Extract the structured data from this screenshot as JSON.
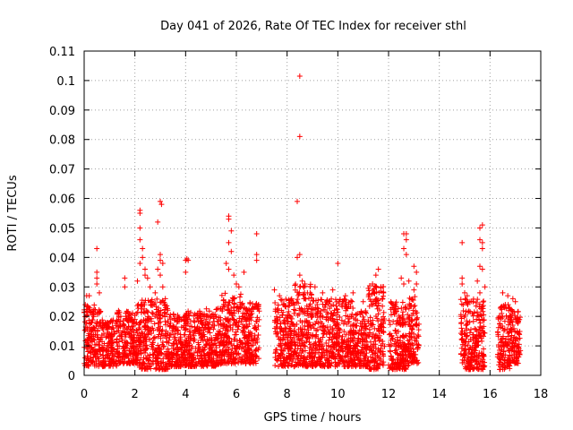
{
  "chart_data": {
    "type": "scatter",
    "title": "Day 041 of 2026, Rate Of TEC Index for receiver sthl",
    "xlabel": "GPS time / hours",
    "ylabel": "ROTI / TECUs",
    "xlim": [
      0,
      18
    ],
    "ylim": [
      0,
      0.11
    ],
    "xticks": [
      "0",
      "2",
      "4",
      "6",
      "8",
      "10",
      "12",
      "14",
      "16",
      "18"
    ],
    "yticks": [
      "0",
      "0.01",
      "0.02",
      "0.03",
      "0.04",
      "0.05",
      "0.06",
      "0.07",
      "0.08",
      "0.09",
      "0.1",
      "0.11"
    ],
    "grid": true,
    "marker": "+",
    "series_color": "#ff0000",
    "series": [
      {
        "name": "ROTI",
        "points": [
          [
            0.1,
            0.027
          ],
          [
            0.2,
            0.027
          ],
          [
            0.5,
            0.043
          ],
          [
            0.5,
            0.035
          ],
          [
            0.5,
            0.033
          ],
          [
            0.5,
            0.031
          ],
          [
            0.6,
            0.028
          ],
          [
            1.6,
            0.03
          ],
          [
            1.6,
            0.033
          ],
          [
            2.2,
            0.056
          ],
          [
            2.2,
            0.055
          ],
          [
            2.2,
            0.05
          ],
          [
            2.2,
            0.046
          ],
          [
            2.3,
            0.043
          ],
          [
            2.3,
            0.04
          ],
          [
            2.2,
            0.038
          ],
          [
            2.4,
            0.036
          ],
          [
            2.4,
            0.034
          ],
          [
            2.5,
            0.033
          ],
          [
            2.1,
            0.032
          ],
          [
            2.6,
            0.03
          ],
          [
            3.0,
            0.059
          ],
          [
            3.05,
            0.058
          ],
          [
            2.9,
            0.052
          ],
          [
            3.0,
            0.041
          ],
          [
            3.0,
            0.039
          ],
          [
            3.1,
            0.038
          ],
          [
            2.9,
            0.036
          ],
          [
            3.0,
            0.034
          ],
          [
            3.1,
            0.03
          ],
          [
            2.8,
            0.028
          ],
          [
            3.2,
            0.026
          ],
          [
            4.0,
            0.039
          ],
          [
            4.05,
            0.0395
          ],
          [
            4.1,
            0.039
          ],
          [
            4.0,
            0.035
          ],
          [
            5.7,
            0.054
          ],
          [
            5.7,
            0.053
          ],
          [
            5.8,
            0.049
          ],
          [
            5.7,
            0.045
          ],
          [
            5.8,
            0.042
          ],
          [
            5.6,
            0.038
          ],
          [
            5.7,
            0.036
          ],
          [
            5.9,
            0.034
          ],
          [
            6.0,
            0.031
          ],
          [
            6.3,
            0.035
          ],
          [
            6.1,
            0.03
          ],
          [
            6.8,
            0.048
          ],
          [
            6.8,
            0.041
          ],
          [
            6.8,
            0.039
          ],
          [
            7.5,
            0.029
          ],
          [
            7.7,
            0.027
          ],
          [
            8.4,
            0.059
          ],
          [
            8.5,
            0.1015
          ],
          [
            8.5,
            0.081
          ],
          [
            8.5,
            0.041
          ],
          [
            8.4,
            0.04
          ],
          [
            8.5,
            0.034
          ],
          [
            8.6,
            0.032
          ],
          [
            8.7,
            0.031
          ],
          [
            8.5,
            0.03
          ],
          [
            8.8,
            0.028
          ],
          [
            9.1,
            0.03
          ],
          [
            9.4,
            0.028
          ],
          [
            9.8,
            0.029
          ],
          [
            10.0,
            0.038
          ],
          [
            10.3,
            0.027
          ],
          [
            10.6,
            0.028
          ],
          [
            11.0,
            0.025
          ],
          [
            11.5,
            0.034
          ],
          [
            11.6,
            0.036
          ],
          [
            11.7,
            0.03
          ],
          [
            11.8,
            0.028
          ],
          [
            12.6,
            0.048
          ],
          [
            12.7,
            0.048
          ],
          [
            12.7,
            0.046
          ],
          [
            12.6,
            0.043
          ],
          [
            12.7,
            0.041
          ],
          [
            12.5,
            0.033
          ],
          [
            12.6,
            0.031
          ],
          [
            12.8,
            0.032
          ],
          [
            13.0,
            0.037
          ],
          [
            13.1,
            0.035
          ],
          [
            13.1,
            0.031
          ],
          [
            13.0,
            0.029
          ],
          [
            14.9,
            0.045
          ],
          [
            14.9,
            0.033
          ],
          [
            14.9,
            0.031
          ],
          [
            15.0,
            0.028
          ],
          [
            15.1,
            0.027
          ],
          [
            15.6,
            0.05
          ],
          [
            15.7,
            0.051
          ],
          [
            15.6,
            0.046
          ],
          [
            15.7,
            0.045
          ],
          [
            15.7,
            0.043
          ],
          [
            15.6,
            0.037
          ],
          [
            15.7,
            0.036
          ],
          [
            15.5,
            0.032
          ],
          [
            15.8,
            0.03
          ],
          [
            15.6,
            0.028
          ],
          [
            16.5,
            0.028
          ],
          [
            16.7,
            0.027
          ],
          [
            16.9,
            0.026
          ],
          [
            17.0,
            0.025
          ],
          [
            16.6,
            0.024
          ]
        ]
      }
    ],
    "dense_bands": [
      {
        "x": [
          0.0,
          0.65
        ],
        "y": [
          0.003,
          0.024
        ]
      },
      {
        "x": [
          0.7,
          1.3
        ],
        "y": [
          0.003,
          0.019
        ]
      },
      {
        "x": [
          1.3,
          2.1
        ],
        "y": [
          0.004,
          0.022
        ]
      },
      {
        "x": [
          2.1,
          3.3
        ],
        "y": [
          0.002,
          0.026
        ]
      },
      {
        "x": [
          3.3,
          4.0
        ],
        "y": [
          0.003,
          0.021
        ]
      },
      {
        "x": [
          4.0,
          4.7
        ],
        "y": [
          0.003,
          0.022
        ]
      },
      {
        "x": [
          4.7,
          5.4
        ],
        "y": [
          0.003,
          0.023
        ]
      },
      {
        "x": [
          5.4,
          6.2
        ],
        "y": [
          0.004,
          0.028
        ]
      },
      {
        "x": [
          6.2,
          6.9
        ],
        "y": [
          0.004,
          0.025
        ]
      },
      {
        "x": [
          7.5,
          8.3
        ],
        "y": [
          0.003,
          0.026
        ]
      },
      {
        "x": [
          8.3,
          9.0
        ],
        "y": [
          0.003,
          0.031
        ]
      },
      {
        "x": [
          9.0,
          9.8
        ],
        "y": [
          0.003,
          0.026
        ]
      },
      {
        "x": [
          9.8,
          10.6
        ],
        "y": [
          0.003,
          0.026
        ]
      },
      {
        "x": [
          10.6,
          11.2
        ],
        "y": [
          0.003,
          0.022
        ]
      },
      {
        "x": [
          11.2,
          11.85
        ],
        "y": [
          0.002,
          0.031
        ]
      },
      {
        "x": [
          12.0,
          12.8
        ],
        "y": [
          0.002,
          0.025
        ]
      },
      {
        "x": [
          12.8,
          13.2
        ],
        "y": [
          0.004,
          0.027
        ]
      },
      {
        "x": [
          14.85,
          15.8
        ],
        "y": [
          0.002,
          0.026
        ]
      },
      {
        "x": [
          16.3,
          16.8
        ],
        "y": [
          0.002,
          0.024
        ]
      },
      {
        "x": [
          16.8,
          17.2
        ],
        "y": [
          0.004,
          0.023
        ]
      }
    ]
  }
}
